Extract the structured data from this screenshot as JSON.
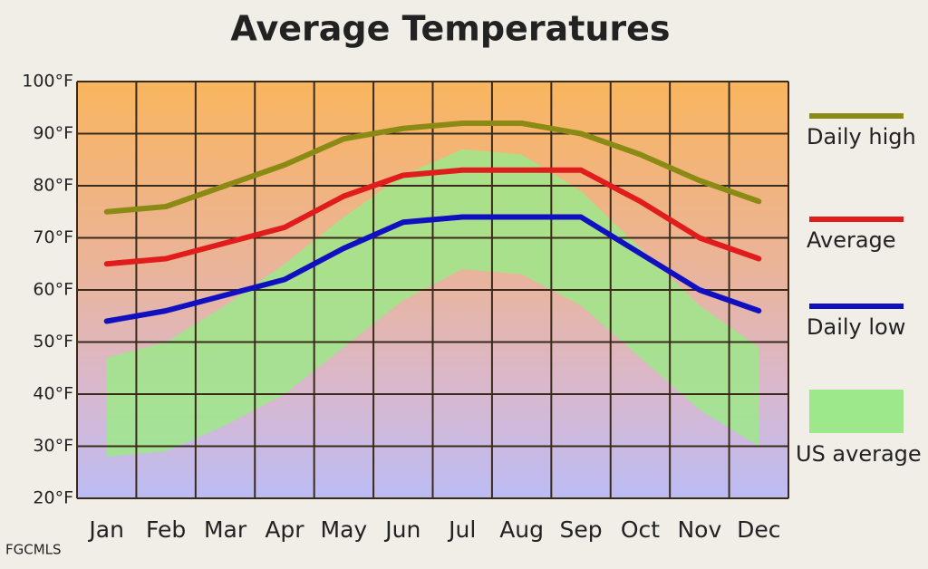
{
  "chart_data": {
    "type": "line",
    "title": "Average Temperatures",
    "categories": [
      "Jan",
      "Feb",
      "Mar",
      "Apr",
      "May",
      "Jun",
      "Jul",
      "Aug",
      "Sep",
      "Oct",
      "Nov",
      "Dec"
    ],
    "series": [
      {
        "name": "Daily high",
        "color": "#8a8a14",
        "values": [
          75,
          76,
          80,
          84,
          89,
          91,
          92,
          92,
          90,
          86,
          81,
          77
        ]
      },
      {
        "name": "Average",
        "color": "#e01c1c",
        "values": [
          65,
          66,
          69,
          72,
          78,
          82,
          83,
          83,
          83,
          77,
          70,
          66
        ]
      },
      {
        "name": "Daily low",
        "color": "#1010c0",
        "values": [
          54,
          56,
          59,
          62,
          68,
          73,
          74,
          74,
          74,
          67,
          60,
          56
        ]
      },
      {
        "name": "US average",
        "color": "#9de88a",
        "high": [
          47,
          50,
          57,
          65,
          74,
          82,
          87,
          86,
          79,
          68,
          57,
          49
        ],
        "low": [
          28,
          29,
          34,
          40,
          49,
          58,
          64,
          63,
          57,
          47,
          37,
          30
        ]
      }
    ],
    "ylim": [
      20,
      100
    ],
    "yticks": [
      {
        "value": 20,
        "label": "20°F"
      },
      {
        "value": 30,
        "label": "30°F"
      },
      {
        "value": 40,
        "label": "40°F"
      },
      {
        "value": 50,
        "label": "50°F"
      },
      {
        "value": 60,
        "label": "60°F"
      },
      {
        "value": 70,
        "label": "70°F"
      },
      {
        "value": 80,
        "label": "80°F"
      },
      {
        "value": 90,
        "label": "90°F"
      },
      {
        "value": 100,
        "label": "100°F"
      }
    ],
    "grid": true,
    "legend": "right",
    "source": "FGCMLS"
  }
}
